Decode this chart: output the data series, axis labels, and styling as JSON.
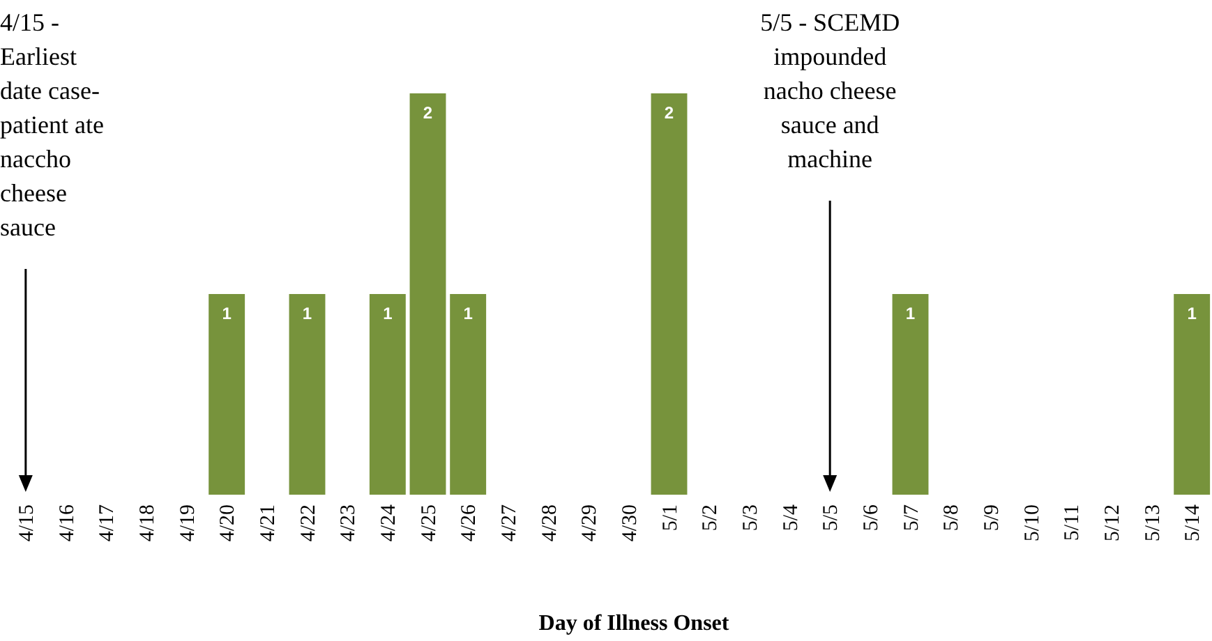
{
  "chart_data": {
    "type": "bar",
    "xlabel": "Day of Illness Onset",
    "categories": [
      "4/15",
      "4/16",
      "4/17",
      "4/18",
      "4/19",
      "4/20",
      "4/21",
      "4/22",
      "4/23",
      "4/24",
      "4/25",
      "4/26",
      "4/27",
      "4/28",
      "4/29",
      "4/30",
      "5/1",
      "5/2",
      "5/3",
      "5/4",
      "5/5",
      "5/6",
      "5/7",
      "5/8",
      "5/9",
      "5/10",
      "5/11",
      "5/12",
      "5/13",
      "5/14"
    ],
    "values": [
      0,
      0,
      0,
      0,
      0,
      1,
      0,
      1,
      0,
      1,
      2,
      1,
      0,
      0,
      0,
      0,
      2,
      0,
      0,
      0,
      0,
      0,
      1,
      0,
      0,
      0,
      0,
      0,
      0,
      1
    ],
    "value_labels": [
      null,
      null,
      null,
      null,
      null,
      "1",
      null,
      "1",
      null,
      "1",
      "2",
      "1",
      null,
      null,
      null,
      null,
      "2",
      null,
      null,
      null,
      null,
      null,
      "1",
      null,
      null,
      null,
      null,
      null,
      null,
      "1"
    ],
    "color": "#77933c",
    "tick_labels": "x",
    "grid": false,
    "ref_lines": [
      {
        "axis": "x",
        "value": "4/15",
        "label": "4/15 -\nEarliest\ndate case-\npatient ate\nnaccho\ncheese\nsauce"
      },
      {
        "axis": "x",
        "value": "5/5",
        "label": "5/5 - SCEMD\nimpounded\nnacho cheese\nsauce and\nmachine"
      }
    ]
  }
}
